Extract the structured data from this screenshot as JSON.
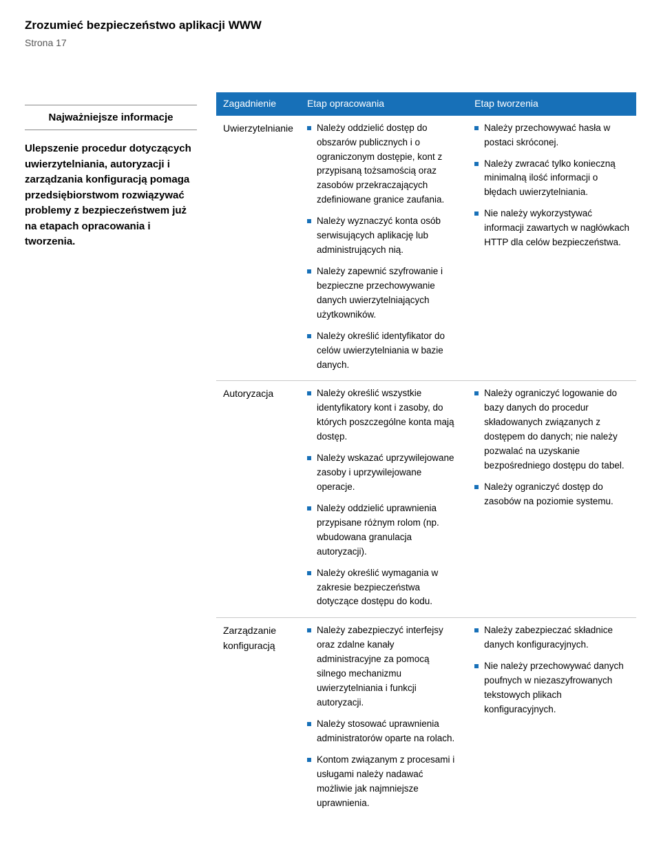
{
  "header": {
    "title": "Zrozumieć bezpieczeństwo aplikacji WWW",
    "page": "Strona 17"
  },
  "sidebar": {
    "heading": "Najważniejsze informacje",
    "text": "Ulepszenie procedur dotyczących uwierzytelniania, autoryzacji i zarządzania konfiguracją pomaga przedsiębiorstwom rozwiązywać problemy z bezpieczeństwem już na etapach opracowania i tworzenia."
  },
  "table": {
    "columns": [
      "Zagadnienie",
      "Etap opracowania",
      "Etap tworzenia"
    ],
    "header_bg": "#1770b8",
    "bullet_color": "#1770b8",
    "rows": [
      {
        "issue": "Uwierzytelnianie",
        "col2": [
          "Należy oddzielić dostęp do obszarów publicznych i o ograniczonym dostępie, kont z przypisaną tożsamością oraz zasobów przekraczających zdefiniowane granice zaufania.",
          "Należy wyznaczyć konta osób serwisujących aplikację lub administrujących nią.",
          "Należy zapewnić szyfrowanie i bezpieczne przechowywanie danych uwierzytelniających użytkowników.",
          "Należy określić identyfikator do celów uwierzytelniania w bazie danych."
        ],
        "col3": [
          "Należy przechowywać hasła w postaci skróconej.",
          "Należy zwracać tylko konieczną minimalną ilość informacji o błędach uwierzytelniania.",
          "Nie należy wykorzystywać informacji zawartych w nagłówkach HTTP dla celów bezpieczeństwa."
        ]
      },
      {
        "issue": "Autoryzacja",
        "col2": [
          "Należy określić wszystkie identyfikatory kont i zasoby, do których poszczególne konta mają dostęp.",
          "Należy wskazać uprzywilejowane zasoby i uprzywilejowane operacje.",
          "Należy oddzielić uprawnienia przypisane różnym rolom (np. wbudowana granulacja autoryzacji).",
          "Należy określić wymagania w zakresie bezpieczeństwa dotyczące dostępu do kodu."
        ],
        "col3": [
          "Należy ograniczyć logowanie do bazy danych do procedur składowanych związanych z dostępem do danych; nie należy pozwalać na uzyskanie bezpośredniego dostępu do tabel.",
          "Należy ograniczyć dostęp do zasobów na poziomie systemu."
        ]
      },
      {
        "issue": "Zarządzanie konfiguracją",
        "col2": [
          "Należy zabezpieczyć interfejsy oraz zdalne kanały administracyjne za pomocą silnego mechanizmu uwierzytelniania i funkcji autoryzacji.",
          "Należy stosować uprawnienia administratorów oparte na rolach.",
          "Kontom związanym z procesami i usługami należy nadawać możliwie jak najmniejsze uprawnienia."
        ],
        "col3": [
          "Należy zabezpieczać składnice danych konfiguracyjnych.",
          "Nie należy przechowywać danych poufnych w niezaszyfrowanych tekstowych plikach konfiguracyjnych."
        ]
      }
    ]
  }
}
